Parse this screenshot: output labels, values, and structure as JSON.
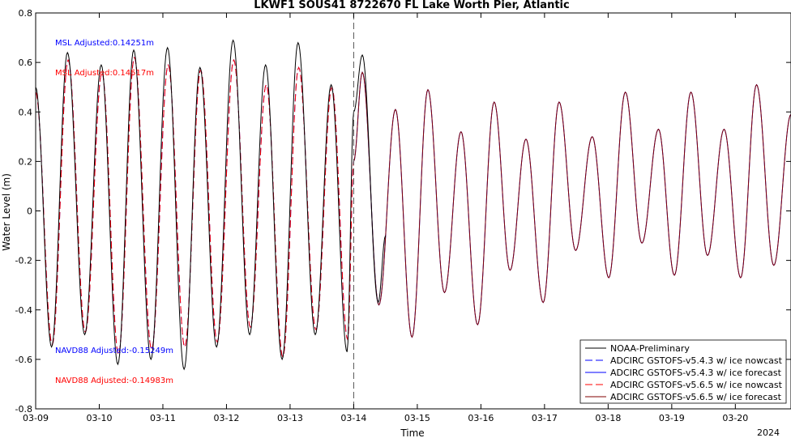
{
  "chart_data": {
    "type": "line",
    "title": "LKWF1 SOUS41 8722670 FL Lake Worth Pier, Atlantic",
    "xlabel": "Time",
    "ylabel": "Water Level (m)",
    "xlim": [
      "2024-03-09 00:00",
      "2024-03-20 21:00"
    ],
    "ylim": [
      -0.8,
      0.8
    ],
    "x_ticks": [
      "03-09",
      "03-10",
      "03-11",
      "03-12",
      "03-13",
      "03-14",
      "03-15",
      "03-16",
      "03-17",
      "03-18",
      "03-19",
      "03-20"
    ],
    "x_year_label": "2024",
    "y_ticks": [
      "-0.8",
      "-0.6",
      "-0.4",
      "-0.2",
      "0",
      "0.2",
      "0.4",
      "0.6",
      "0.8"
    ],
    "grid": false,
    "nowcast_forecast_divider": "2024-03-14 00:00",
    "annotations": [
      {
        "text": "MSL Adjusted:0.14251m",
        "color": "#0000ff"
      },
      {
        "text": "MSL Adjusted:0.14517m",
        "color": "#ff0000"
      },
      {
        "text": "NAVD88 Adjusted:-0.15249m",
        "color": "#0000ff"
      },
      {
        "text": "NAVD88 Adjusted:-0.14983m",
        "color": "#ff0000"
      }
    ],
    "legend_position": "bottom-right",
    "series": [
      {
        "name": "NOAA-Preliminary",
        "color": "#000000",
        "style": "solid",
        "extrema": [
          [
            "2024-03-09 00:00",
            0.5
          ],
          [
            "2024-03-09 06:00",
            -0.55
          ],
          [
            "2024-03-09 12:00",
            0.64
          ],
          [
            "2024-03-09 18:30",
            -0.5
          ],
          [
            "2024-03-10 00:45",
            0.59
          ],
          [
            "2024-03-10 07:00",
            -0.62
          ],
          [
            "2024-03-10 13:00",
            0.65
          ],
          [
            "2024-03-10 19:30",
            -0.6
          ],
          [
            "2024-03-11 01:45",
            0.66
          ],
          [
            "2024-03-11 08:00",
            -0.64
          ],
          [
            "2024-03-11 14:00",
            0.58
          ],
          [
            "2024-03-11 20:15",
            -0.55
          ],
          [
            "2024-03-12 02:30",
            0.69
          ],
          [
            "2024-03-12 08:45",
            -0.5
          ],
          [
            "2024-03-12 14:45",
            0.59
          ],
          [
            "2024-03-12 21:00",
            -0.6
          ],
          [
            "2024-03-13 03:00",
            0.68
          ],
          [
            "2024-03-13 09:30",
            -0.5
          ],
          [
            "2024-03-13 15:30",
            0.51
          ],
          [
            "2024-03-13 21:30",
            -0.57
          ],
          [
            "2024-03-14 00:00",
            0.4
          ],
          [
            "2024-03-14 03:15",
            0.63
          ],
          [
            "2024-03-14 09:15",
            -0.37
          ],
          [
            "2024-03-14 12:00",
            -0.1
          ]
        ]
      },
      {
        "name": "ADCIRC GSTOFS-v5.4.3 w/ ice nowcast",
        "color": "#0000ff",
        "style": "dashed",
        "extrema": [
          [
            "2024-03-09 00:00",
            0.48
          ],
          [
            "2024-03-09 06:15",
            -0.54
          ],
          [
            "2024-03-09 12:15",
            0.61
          ],
          [
            "2024-03-09 18:45",
            -0.49
          ],
          [
            "2024-03-10 01:00",
            0.56
          ],
          [
            "2024-03-10 07:15",
            -0.58
          ],
          [
            "2024-03-10 13:15",
            0.62
          ],
          [
            "2024-03-10 19:45",
            -0.56
          ],
          [
            "2024-03-11 02:00",
            0.59
          ],
          [
            "2024-03-11 08:15",
            -0.55
          ],
          [
            "2024-03-11 14:15",
            0.57
          ],
          [
            "2024-03-11 20:30",
            -0.53
          ],
          [
            "2024-03-12 02:45",
            0.61
          ],
          [
            "2024-03-12 09:00",
            -0.47
          ],
          [
            "2024-03-12 15:00",
            0.51
          ],
          [
            "2024-03-12 21:15",
            -0.59
          ],
          [
            "2024-03-13 03:15",
            0.58
          ],
          [
            "2024-03-13 09:45",
            -0.48
          ],
          [
            "2024-03-13 15:45",
            0.5
          ],
          [
            "2024-03-13 21:45",
            -0.52
          ],
          [
            "2024-03-14 00:00",
            0.2
          ]
        ]
      },
      {
        "name": "ADCIRC GSTOFS-v5.4.3 w/ ice forecast",
        "color": "#0000ff",
        "style": "solid",
        "extrema": [
          [
            "2024-03-14 00:00",
            0.2
          ],
          [
            "2024-03-14 03:15",
            0.56
          ],
          [
            "2024-03-14 09:30",
            -0.38
          ],
          [
            "2024-03-14 15:45",
            0.41
          ],
          [
            "2024-03-14 22:00",
            -0.51
          ],
          [
            "2024-03-15 04:00",
            0.49
          ],
          [
            "2024-03-15 10:15",
            -0.33
          ],
          [
            "2024-03-15 16:30",
            0.32
          ],
          [
            "2024-03-15 22:45",
            -0.46
          ],
          [
            "2024-03-16 05:00",
            0.44
          ],
          [
            "2024-03-16 11:00",
            -0.24
          ],
          [
            "2024-03-16 17:00",
            0.29
          ],
          [
            "2024-03-16 23:30",
            -0.37
          ],
          [
            "2024-03-17 05:30",
            0.44
          ],
          [
            "2024-03-17 11:45",
            -0.16
          ],
          [
            "2024-03-17 18:00",
            0.3
          ],
          [
            "2024-03-18 00:15",
            -0.27
          ],
          [
            "2024-03-18 06:30",
            0.48
          ],
          [
            "2024-03-18 12:45",
            -0.13
          ],
          [
            "2024-03-18 19:00",
            0.33
          ],
          [
            "2024-03-19 01:00",
            -0.26
          ],
          [
            "2024-03-19 07:15",
            0.48
          ],
          [
            "2024-03-19 13:30",
            -0.18
          ],
          [
            "2024-03-19 19:45",
            0.33
          ],
          [
            "2024-03-20 02:00",
            -0.27
          ],
          [
            "2024-03-20 08:00",
            0.51
          ],
          [
            "2024-03-20 14:30",
            -0.22
          ],
          [
            "2024-03-20 21:00",
            0.39
          ]
        ]
      },
      {
        "name": "ADCIRC GSTOFS-v5.6.5 w/ ice nowcast",
        "color": "#ff0000",
        "style": "dashed",
        "extrema": [
          [
            "2024-03-09 00:00",
            0.48
          ],
          [
            "2024-03-09 06:15",
            -0.54
          ],
          [
            "2024-03-09 12:15",
            0.61
          ],
          [
            "2024-03-09 18:45",
            -0.49
          ],
          [
            "2024-03-10 01:00",
            0.56
          ],
          [
            "2024-03-10 07:15",
            -0.58
          ],
          [
            "2024-03-10 13:15",
            0.62
          ],
          [
            "2024-03-10 19:45",
            -0.56
          ],
          [
            "2024-03-11 02:00",
            0.59
          ],
          [
            "2024-03-11 08:15",
            -0.55
          ],
          [
            "2024-03-11 14:15",
            0.57
          ],
          [
            "2024-03-11 20:30",
            -0.53
          ],
          [
            "2024-03-12 02:45",
            0.61
          ],
          [
            "2024-03-12 09:00",
            -0.47
          ],
          [
            "2024-03-12 15:00",
            0.51
          ],
          [
            "2024-03-12 21:15",
            -0.59
          ],
          [
            "2024-03-13 03:15",
            0.58
          ],
          [
            "2024-03-13 09:45",
            -0.48
          ],
          [
            "2024-03-13 15:45",
            0.5
          ],
          [
            "2024-03-13 21:45",
            -0.52
          ],
          [
            "2024-03-14 00:00",
            0.2
          ]
        ]
      },
      {
        "name": "ADCIRC GSTOFS-v5.6.5 w/ ice forecast",
        "color": "#800000",
        "style": "solid",
        "extrema": [
          [
            "2024-03-14 00:00",
            0.2
          ],
          [
            "2024-03-14 03:15",
            0.56
          ],
          [
            "2024-03-14 09:30",
            -0.38
          ],
          [
            "2024-03-14 15:45",
            0.41
          ],
          [
            "2024-03-14 22:00",
            -0.51
          ],
          [
            "2024-03-15 04:00",
            0.49
          ],
          [
            "2024-03-15 10:15",
            -0.33
          ],
          [
            "2024-03-15 16:30",
            0.32
          ],
          [
            "2024-03-15 22:45",
            -0.46
          ],
          [
            "2024-03-16 05:00",
            0.44
          ],
          [
            "2024-03-16 11:00",
            -0.24
          ],
          [
            "2024-03-16 17:00",
            0.29
          ],
          [
            "2024-03-16 23:30",
            -0.37
          ],
          [
            "2024-03-17 05:30",
            0.44
          ],
          [
            "2024-03-17 11:45",
            -0.16
          ],
          [
            "2024-03-17 18:00",
            0.3
          ],
          [
            "2024-03-18 00:15",
            -0.27
          ],
          [
            "2024-03-18 06:30",
            0.48
          ],
          [
            "2024-03-18 12:45",
            -0.13
          ],
          [
            "2024-03-18 19:00",
            0.33
          ],
          [
            "2024-03-19 01:00",
            -0.26
          ],
          [
            "2024-03-19 07:15",
            0.48
          ],
          [
            "2024-03-19 13:30",
            -0.18
          ],
          [
            "2024-03-19 19:45",
            0.33
          ],
          [
            "2024-03-20 02:00",
            -0.27
          ],
          [
            "2024-03-20 08:00",
            0.51
          ],
          [
            "2024-03-20 14:30",
            -0.22
          ],
          [
            "2024-03-20 21:00",
            0.39
          ]
        ]
      }
    ]
  }
}
